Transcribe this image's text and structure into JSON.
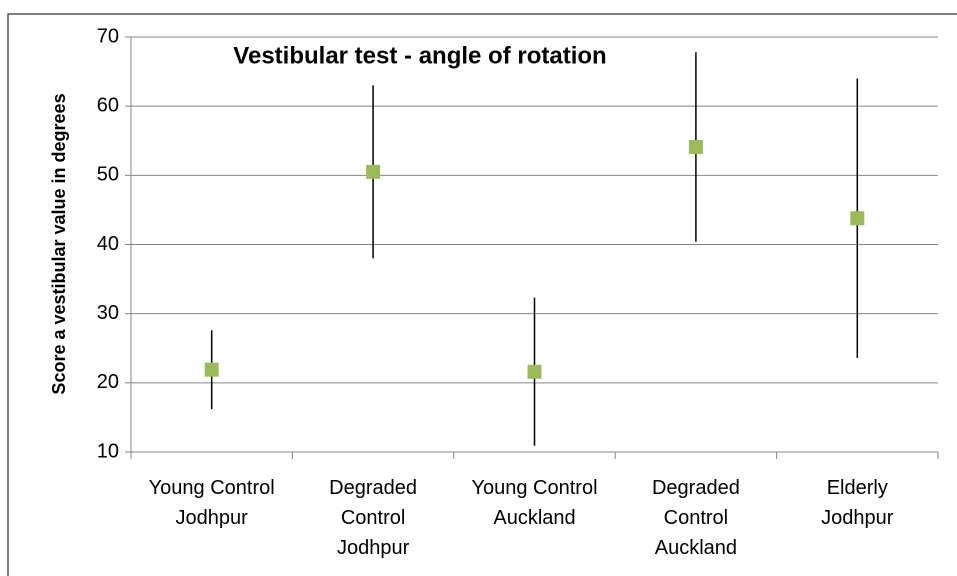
{
  "chart_data": {
    "type": "errorbar",
    "title": "Vestibular test - angle of rotation",
    "y_label": "Score a vestibular value in degrees",
    "categories": [
      "Young Control Jodhpur",
      "Degraded Control Jodhpur",
      "Young Control Auckland",
      "Degraded Control Auckland",
      "Elderly Jodhpur"
    ],
    "values": [
      21.9,
      50.5,
      21.6,
      54.1,
      43.8
    ],
    "errors": [
      5.7,
      12.5,
      10.7,
      13.7,
      20.2
    ],
    "color": "#9bbb59",
    "ylim": [
      10,
      70
    ],
    "yticks": [
      10,
      20,
      30,
      40,
      50,
      60,
      70
    ],
    "grid": true
  }
}
